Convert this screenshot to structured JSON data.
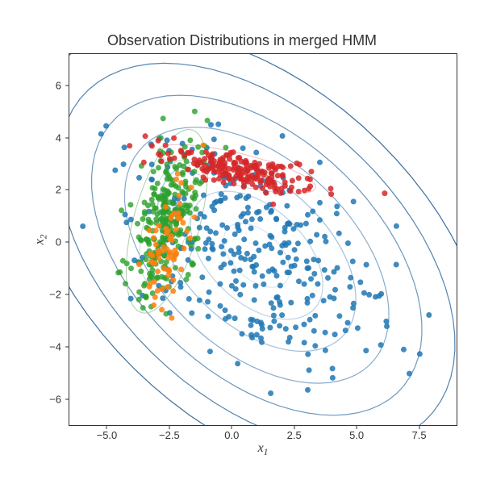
{
  "chart": {
    "type": "scatter",
    "title": "Observation Distributions in merged HMM",
    "title_fontsize": 18,
    "xlabel": "x₁",
    "ylabel": "x₂",
    "label_fontsize": 16,
    "xlim": [
      -6.5,
      9.0
    ],
    "ylim": [
      -7.0,
      7.2
    ],
    "xticks": [
      -5.0,
      -2.5,
      0.0,
      2.5,
      5.0,
      7.5
    ],
    "xtick_labels": [
      "−5.0",
      "−2.5",
      "0.0",
      "2.5",
      "5.0",
      "7.5"
    ],
    "yticks": [
      -6,
      -4,
      -2,
      0,
      2,
      4,
      6
    ],
    "ytick_labels": [
      "−6",
      "−4",
      "−2",
      "0",
      "2",
      "4",
      "6"
    ],
    "background_color": "#ffffff",
    "border_color": "#333333",
    "tick_fontsize": 13,
    "clusters": [
      {
        "name": "blue",
        "color": "#1f77b4",
        "opacity": 0.85,
        "marker_size": 3.5,
        "n_points": 320,
        "mean": [
          1.0,
          -0.5
        ],
        "cov": [
          [
            7.0,
            -3.0
          ],
          [
            -3.0,
            6.0
          ]
        ]
      },
      {
        "name": "green",
        "color": "#2ca02c",
        "opacity": 0.8,
        "marker_size": 3.5,
        "n_points": 260,
        "mean": [
          -2.6,
          0.8
        ],
        "cov": [
          [
            0.6,
            0.7
          ],
          [
            0.7,
            2.8
          ]
        ]
      },
      {
        "name": "orange",
        "color": "#ff7f0e",
        "opacity": 0.85,
        "marker_size": 3.5,
        "n_points": 70,
        "mean": [
          -2.6,
          -0.3
        ],
        "cov": [
          [
            0.25,
            0.4
          ],
          [
            0.4,
            1.8
          ]
        ]
      },
      {
        "name": "red",
        "color": "#d62728",
        "opacity": 0.85,
        "marker_size": 3.5,
        "n_points": 200,
        "mean": [
          0.2,
          2.8
        ],
        "cov": [
          [
            2.5,
            -0.55
          ],
          [
            -0.55,
            0.22
          ]
        ]
      }
    ],
    "contours": [
      {
        "name": "blue-contours",
        "mean": [
          1.0,
          -0.5
        ],
        "cov": [
          [
            7.0,
            -3.0
          ],
          [
            -3.0,
            6.0
          ]
        ],
        "levels": [
          0.5,
          1.0,
          1.5,
          2.0,
          2.5,
          3.0,
          3.5
        ],
        "color_start": "#d6e7f5",
        "color_end": "#3a6fa0",
        "stroke_width": 1.2
      },
      {
        "name": "green-contours",
        "mean": [
          -2.6,
          0.8
        ],
        "cov": [
          [
            0.6,
            0.7
          ],
          [
            0.7,
            2.8
          ]
        ],
        "levels": [
          0.7,
          1.4,
          2.1
        ],
        "color_start": "#e2efe2",
        "color_end": "#a8d0a8",
        "stroke_width": 1.0
      },
      {
        "name": "red-contours",
        "mean": [
          0.2,
          2.8
        ],
        "cov": [
          [
            2.5,
            -0.55
          ],
          [
            -0.55,
            0.22
          ]
        ],
        "levels": [
          1.0,
          2.0
        ],
        "color_start": "#f8d7d7",
        "color_end": "#eec0c0",
        "stroke_width": 1.0
      }
    ]
  }
}
